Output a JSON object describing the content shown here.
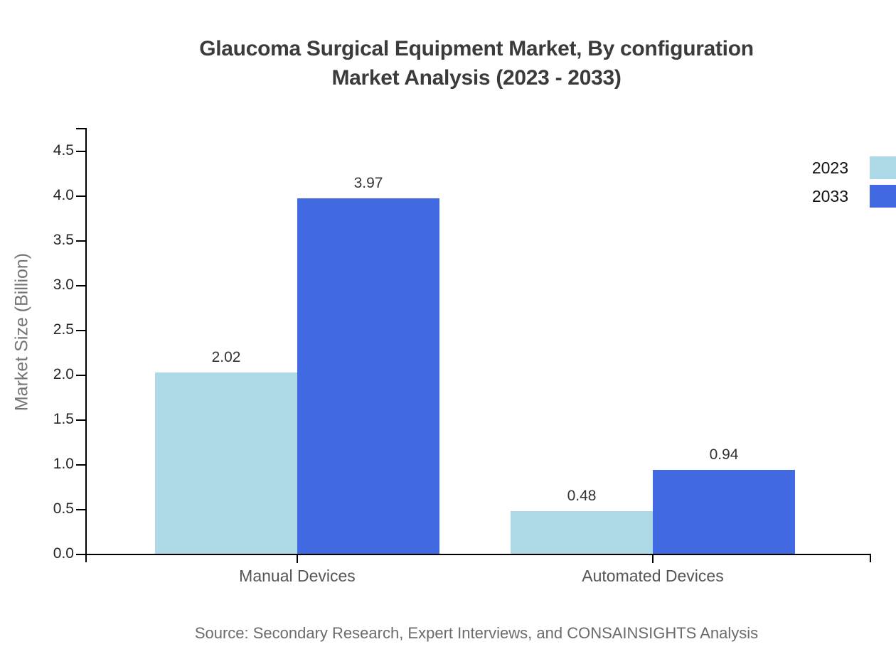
{
  "title": {
    "line1": "Glaucoma Surgical Equipment Market, By configuration",
    "line2": "Market Analysis (2023 - 2033)"
  },
  "chart_data": {
    "type": "bar",
    "categories": [
      "Manual Devices",
      "Automated Devices"
    ],
    "series": [
      {
        "name": "2023",
        "color": "#ADD8E6",
        "values": [
          2.02,
          0.48
        ]
      },
      {
        "name": "2033",
        "color": "#4169E1",
        "values": [
          3.97,
          0.94
        ]
      }
    ],
    "value_labels": [
      [
        "2.02",
        "0.48"
      ],
      [
        "3.97",
        "0.94"
      ]
    ],
    "title": "Glaucoma Surgical Equipment Market, By configuration Market Analysis (2023 - 2033)",
    "xlabel": "",
    "ylabel": "Market Size (Billion)",
    "ylim": [
      0,
      4.77
    ],
    "yticks": [
      0.0,
      0.5,
      1.0,
      1.5,
      2.0,
      2.5,
      3.0,
      3.5,
      4.0,
      4.5
    ],
    "grid": false,
    "legend_position": "top-right"
  },
  "legend": {
    "items": [
      {
        "label": "2023",
        "color": "#ADD8E6"
      },
      {
        "label": "2033",
        "color": "#4169E1"
      }
    ]
  },
  "source": "Source: Secondary Research, Expert Interviews, and CONSAINSIGHTS Analysis",
  "colors": {
    "series_2023": "#ADD8E6",
    "series_2033": "#4169E1",
    "axis_line": "#000000",
    "title_text": "#3B3B3B",
    "tick_text": "#262626",
    "category_text": "#555555",
    "y_axis_title_text": "#757575",
    "source_text": "#6B6B6B"
  }
}
